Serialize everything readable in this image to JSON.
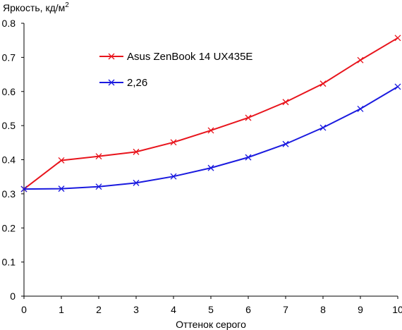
{
  "chart_data": {
    "type": "line",
    "title": "",
    "ylabel": "Яркость, кд/м",
    "ylabel_sup": "2",
    "xlabel": "Оттенок серого",
    "xlim": [
      0,
      10
    ],
    "ylim": [
      0,
      0.8
    ],
    "x": [
      0,
      1,
      2,
      3,
      4,
      5,
      6,
      7,
      8,
      9,
      10
    ],
    "x_ticks": [
      "0",
      "1",
      "2",
      "3",
      "4",
      "5",
      "6",
      "7",
      "8",
      "9",
      "10"
    ],
    "y_ticks": [
      "0",
      "0.1",
      "0.2",
      "0.3",
      "0.4",
      "0.5",
      "0.6",
      "0.7",
      "0.8"
    ],
    "y_tick_values": [
      0,
      0.1,
      0.2,
      0.3,
      0.4,
      0.5,
      0.6,
      0.7,
      0.8
    ],
    "grid": false,
    "legend_position": "top-left inside plot",
    "series": [
      {
        "name": "Asus ZenBook 14 UX435E",
        "color": "#e8141c",
        "marker": "x",
        "values": [
          0.314,
          0.398,
          0.41,
          0.423,
          0.451,
          0.486,
          0.523,
          0.569,
          0.623,
          0.692,
          0.757
        ]
      },
      {
        "name": "2,26",
        "color": "#1a1adf",
        "marker": "x",
        "values": [
          0.314,
          0.315,
          0.321,
          0.332,
          0.351,
          0.376,
          0.407,
          0.446,
          0.494,
          0.549,
          0.614
        ]
      }
    ]
  }
}
